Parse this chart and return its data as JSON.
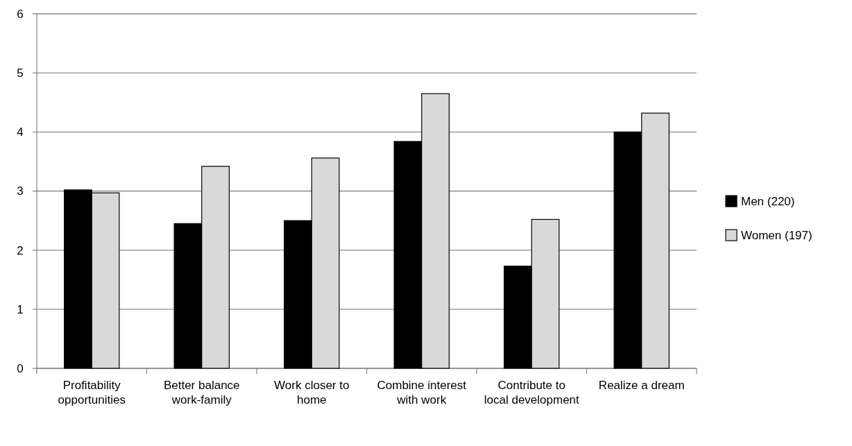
{
  "chart_data": {
    "type": "bar",
    "categories": [
      "Profitability opportunities",
      "Better balance work-family",
      "Work closer to home",
      "Combine interest with work",
      "Contribute to local development",
      "Realize a dream"
    ],
    "series": [
      {
        "name": "Men (220)",
        "color": "#000000",
        "values": [
          3.02,
          2.45,
          2.5,
          3.84,
          1.73,
          4.0
        ]
      },
      {
        "name": "Women (197)",
        "color": "#d9d9d9",
        "values": [
          2.97,
          3.42,
          3.56,
          4.65,
          2.52,
          4.32
        ]
      }
    ],
    "ylim": [
      0,
      6
    ],
    "yticks": [
      0,
      1,
      2,
      3,
      4,
      5,
      6
    ],
    "grid": "y",
    "legend": "right"
  }
}
